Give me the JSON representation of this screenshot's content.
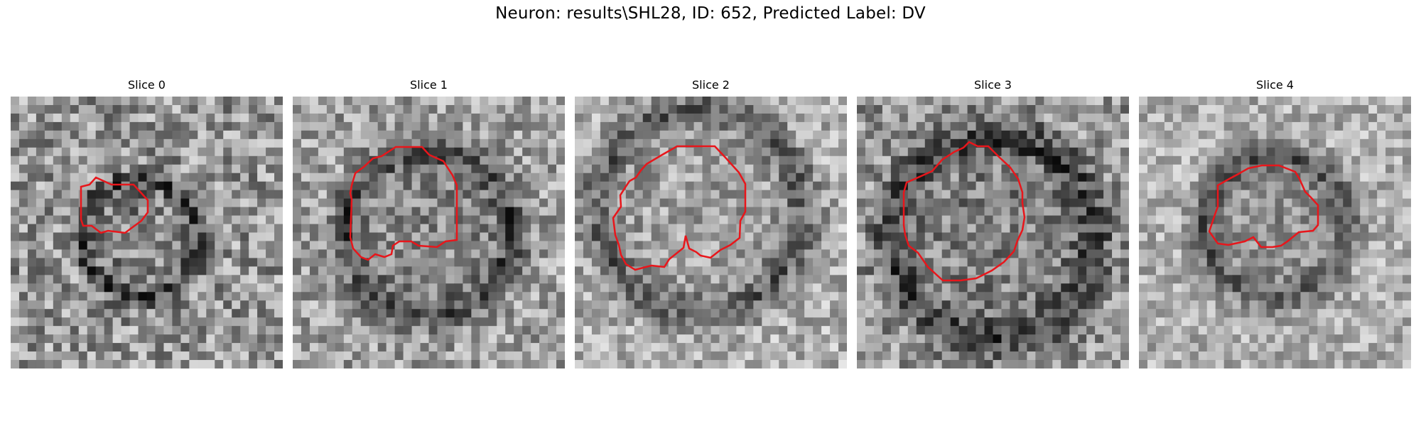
{
  "title": "Neuron: results\\SHL28, ID: 652, Predicted Label: DV",
  "panels": [
    {
      "title": "Slice 0"
    },
    {
      "title": "Slice 1"
    },
    {
      "title": "Slice 2"
    },
    {
      "title": "Slice 3"
    },
    {
      "title": "Slice 4"
    }
  ],
  "colors": {
    "contour": "#e8161b",
    "colormap": "gray"
  }
}
